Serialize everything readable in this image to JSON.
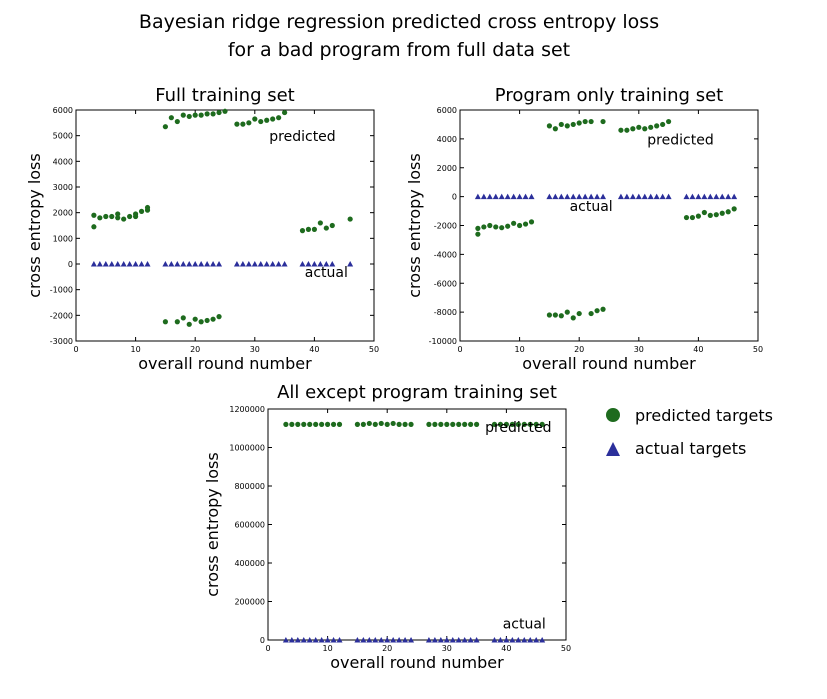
{
  "figure": {
    "title_line1": "Bayesian ridge regression predicted cross entropy loss",
    "title_line2": "for a bad program from full data set",
    "legend": {
      "predicted_label": "predicted targets",
      "actual_label": "actual targets",
      "placement": "right of bottom plot"
    },
    "colors": {
      "predicted": "#1e6b1e",
      "actual": "#2b2f9b"
    }
  },
  "chart_data": [
    {
      "type": "scatter",
      "title": "Full training set",
      "xlabel": "overall round number",
      "ylabel": "cross entropy loss",
      "xlim": [
        0,
        50
      ],
      "ylim": [
        -3000,
        6000
      ],
      "xticks": [
        0,
        10,
        20,
        30,
        40,
        50
      ],
      "yticks": [
        -3000,
        -2000,
        -1000,
        0,
        1000,
        2000,
        3000,
        4000,
        5000,
        6000
      ],
      "annotations": [
        {
          "text": "predicted",
          "x": 38,
          "y": 4800
        },
        {
          "text": "actual",
          "x": 42,
          "y": -500
        }
      ],
      "series": [
        {
          "name": "predicted targets",
          "marker": "circle",
          "points": [
            [
              3,
              1450
            ],
            [
              3,
              1900
            ],
            [
              4,
              1800
            ],
            [
              5,
              1850
            ],
            [
              6,
              1850
            ],
            [
              7,
              1950
            ],
            [
              7,
              1800
            ],
            [
              8,
              1750
            ],
            [
              9,
              1850
            ],
            [
              10,
              1950
            ],
            [
              10,
              1850
            ],
            [
              11,
              2050
            ],
            [
              12,
              2100
            ],
            [
              12,
              2200
            ],
            [
              15,
              -2250
            ],
            [
              17,
              -2250
            ],
            [
              18,
              -2100
            ],
            [
              19,
              -2350
            ],
            [
              20,
              -2150
            ],
            [
              21,
              -2250
            ],
            [
              22,
              -2200
            ],
            [
              23,
              -2150
            ],
            [
              24,
              -2050
            ],
            [
              15,
              5350
            ],
            [
              16,
              5700
            ],
            [
              17,
              5550
            ],
            [
              18,
              5800
            ],
            [
              19,
              5750
            ],
            [
              20,
              5800
            ],
            [
              21,
              5800
            ],
            [
              22,
              5850
            ],
            [
              23,
              5850
            ],
            [
              24,
              5900
            ],
            [
              25,
              5950
            ],
            [
              27,
              5450
            ],
            [
              28,
              5450
            ],
            [
              29,
              5500
            ],
            [
              30,
              5650
            ],
            [
              31,
              5550
            ],
            [
              32,
              5600
            ],
            [
              33,
              5650
            ],
            [
              34,
              5700
            ],
            [
              35,
              5900
            ],
            [
              38,
              1300
            ],
            [
              39,
              1350
            ],
            [
              40,
              1350
            ],
            [
              41,
              1600
            ],
            [
              42,
              1400
            ],
            [
              43,
              1500
            ],
            [
              46,
              1750
            ]
          ]
        },
        {
          "name": "actual targets",
          "marker": "triangle",
          "points": [
            [
              3,
              0
            ],
            [
              4,
              0
            ],
            [
              5,
              0
            ],
            [
              6,
              0
            ],
            [
              7,
              0
            ],
            [
              8,
              0
            ],
            [
              9,
              0
            ],
            [
              10,
              0
            ],
            [
              11,
              0
            ],
            [
              12,
              0
            ],
            [
              15,
              0
            ],
            [
              16,
              0
            ],
            [
              17,
              0
            ],
            [
              18,
              0
            ],
            [
              19,
              0
            ],
            [
              20,
              0
            ],
            [
              21,
              0
            ],
            [
              22,
              0
            ],
            [
              23,
              0
            ],
            [
              24,
              0
            ],
            [
              27,
              0
            ],
            [
              28,
              0
            ],
            [
              29,
              0
            ],
            [
              30,
              0
            ],
            [
              31,
              0
            ],
            [
              32,
              0
            ],
            [
              33,
              0
            ],
            [
              34,
              0
            ],
            [
              35,
              0
            ],
            [
              38,
              0
            ],
            [
              39,
              0
            ],
            [
              40,
              0
            ],
            [
              41,
              0
            ],
            [
              42,
              0
            ],
            [
              43,
              0
            ],
            [
              46,
              0
            ]
          ]
        }
      ]
    },
    {
      "type": "scatter",
      "title": "Program only training set",
      "xlabel": "overall round number",
      "ylabel": "cross entropy loss",
      "xlim": [
        0,
        50
      ],
      "ylim": [
        -10000,
        6000
      ],
      "xticks": [
        0,
        10,
        20,
        30,
        40,
        50
      ],
      "yticks": [
        -10000,
        -8000,
        -6000,
        -4000,
        -2000,
        0,
        2000,
        4000,
        6000
      ],
      "annotations": [
        {
          "text": "predicted",
          "x": 37,
          "y": 3600
        },
        {
          "text": "actual",
          "x": 22,
          "y": -1000
        }
      ],
      "series": [
        {
          "name": "predicted targets",
          "marker": "circle",
          "points": [
            [
              3,
              -2600
            ],
            [
              3,
              -2200
            ],
            [
              4,
              -2100
            ],
            [
              5,
              -2000
            ],
            [
              6,
              -2100
            ],
            [
              7,
              -2150
            ],
            [
              8,
              -2050
            ],
            [
              9,
              -1850
            ],
            [
              10,
              -2000
            ],
            [
              11,
              -1900
            ],
            [
              12,
              -1750
            ],
            [
              15,
              -8200
            ],
            [
              16,
              -8200
            ],
            [
              17,
              -8250
            ],
            [
              18,
              -8000
            ],
            [
              19,
              -8400
            ],
            [
              20,
              -8100
            ],
            [
              22,
              -8100
            ],
            [
              23,
              -7900
            ],
            [
              24,
              -7800
            ],
            [
              15,
              4900
            ],
            [
              16,
              4700
            ],
            [
              17,
              5000
            ],
            [
              18,
              4900
            ],
            [
              19,
              5000
            ],
            [
              20,
              5100
            ],
            [
              21,
              5200
            ],
            [
              22,
              5200
            ],
            [
              24,
              5200
            ],
            [
              27,
              4600
            ],
            [
              28,
              4600
            ],
            [
              29,
              4700
            ],
            [
              30,
              4800
            ],
            [
              31,
              4700
            ],
            [
              32,
              4800
            ],
            [
              33,
              4900
            ],
            [
              34,
              5000
            ],
            [
              35,
              5200
            ],
            [
              38,
              -1450
            ],
            [
              39,
              -1450
            ],
            [
              40,
              -1350
            ],
            [
              41,
              -1100
            ],
            [
              42,
              -1300
            ],
            [
              43,
              -1250
            ],
            [
              44,
              -1150
            ],
            [
              45,
              -1050
            ],
            [
              46,
              -850
            ]
          ]
        },
        {
          "name": "actual targets",
          "marker": "triangle",
          "points": [
            [
              3,
              0
            ],
            [
              4,
              0
            ],
            [
              5,
              0
            ],
            [
              6,
              0
            ],
            [
              7,
              0
            ],
            [
              8,
              0
            ],
            [
              9,
              0
            ],
            [
              10,
              0
            ],
            [
              11,
              0
            ],
            [
              12,
              0
            ],
            [
              15,
              0
            ],
            [
              16,
              0
            ],
            [
              17,
              0
            ],
            [
              18,
              0
            ],
            [
              19,
              0
            ],
            [
              20,
              0
            ],
            [
              21,
              0
            ],
            [
              22,
              0
            ],
            [
              23,
              0
            ],
            [
              24,
              0
            ],
            [
              27,
              0
            ],
            [
              28,
              0
            ],
            [
              29,
              0
            ],
            [
              30,
              0
            ],
            [
              31,
              0
            ],
            [
              32,
              0
            ],
            [
              33,
              0
            ],
            [
              34,
              0
            ],
            [
              35,
              0
            ],
            [
              38,
              0
            ],
            [
              39,
              0
            ],
            [
              40,
              0
            ],
            [
              41,
              0
            ],
            [
              42,
              0
            ],
            [
              43,
              0
            ],
            [
              44,
              0
            ],
            [
              45,
              0
            ],
            [
              46,
              0
            ]
          ]
        }
      ]
    },
    {
      "type": "scatter",
      "title": "All except program training set",
      "xlabel": "overall round number",
      "ylabel": "cross entropy loss",
      "xlim": [
        0,
        50
      ],
      "ylim": [
        0,
        1200000
      ],
      "xticks": [
        0,
        10,
        20,
        30,
        40,
        50
      ],
      "yticks": [
        0,
        200000,
        400000,
        600000,
        800000,
        1000000,
        1200000
      ],
      "annotations": [
        {
          "text": "predicted",
          "x": 42,
          "y": 1080000
        },
        {
          "text": "actual",
          "x": 43,
          "y": 60000
        }
      ],
      "series": [
        {
          "name": "predicted targets",
          "marker": "circle",
          "points": [
            [
              3,
              1120000
            ],
            [
              4,
              1120000
            ],
            [
              5,
              1120000
            ],
            [
              6,
              1120000
            ],
            [
              7,
              1120000
            ],
            [
              8,
              1120000
            ],
            [
              9,
              1120000
            ],
            [
              10,
              1120000
            ],
            [
              11,
              1120000
            ],
            [
              12,
              1120000
            ],
            [
              15,
              1120000
            ],
            [
              16,
              1120000
            ],
            [
              17,
              1125000
            ],
            [
              18,
              1120000
            ],
            [
              19,
              1125000
            ],
            [
              20,
              1120000
            ],
            [
              21,
              1125000
            ],
            [
              22,
              1120000
            ],
            [
              23,
              1120000
            ],
            [
              24,
              1120000
            ],
            [
              27,
              1120000
            ],
            [
              28,
              1120000
            ],
            [
              29,
              1120000
            ],
            [
              30,
              1120000
            ],
            [
              31,
              1120000
            ],
            [
              32,
              1120000
            ],
            [
              33,
              1120000
            ],
            [
              34,
              1120000
            ],
            [
              35,
              1120000
            ],
            [
              38,
              1120000
            ],
            [
              39,
              1120000
            ],
            [
              40,
              1120000
            ],
            [
              41,
              1120000
            ],
            [
              42,
              1120000
            ],
            [
              43,
              1120000
            ],
            [
              44,
              1120000
            ],
            [
              45,
              1120000
            ],
            [
              46,
              1120000
            ]
          ]
        },
        {
          "name": "actual targets",
          "marker": "triangle",
          "points": [
            [
              3,
              0
            ],
            [
              4,
              0
            ],
            [
              5,
              0
            ],
            [
              6,
              0
            ],
            [
              7,
              0
            ],
            [
              8,
              0
            ],
            [
              9,
              0
            ],
            [
              10,
              0
            ],
            [
              11,
              0
            ],
            [
              12,
              0
            ],
            [
              15,
              0
            ],
            [
              16,
              0
            ],
            [
              17,
              0
            ],
            [
              18,
              0
            ],
            [
              19,
              0
            ],
            [
              20,
              0
            ],
            [
              21,
              0
            ],
            [
              22,
              0
            ],
            [
              23,
              0
            ],
            [
              24,
              0
            ],
            [
              27,
              0
            ],
            [
              28,
              0
            ],
            [
              29,
              0
            ],
            [
              30,
              0
            ],
            [
              31,
              0
            ],
            [
              32,
              0
            ],
            [
              33,
              0
            ],
            [
              34,
              0
            ],
            [
              35,
              0
            ],
            [
              38,
              0
            ],
            [
              39,
              0
            ],
            [
              40,
              0
            ],
            [
              41,
              0
            ],
            [
              42,
              0
            ],
            [
              43,
              0
            ],
            [
              44,
              0
            ],
            [
              45,
              0
            ],
            [
              46,
              0
            ]
          ]
        }
      ]
    }
  ]
}
